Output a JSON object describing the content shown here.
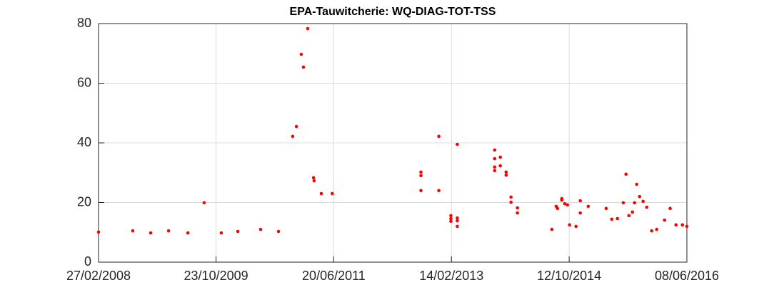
{
  "chart_data": {
    "type": "scatter",
    "title": "EPA-Tauwitcherie: WQ-DIAG-TOT-TSS",
    "x": [
      "27/02/2008",
      "21/08/2008",
      "21/11/2008",
      "21/02/2009",
      "31/05/2009",
      "23/08/2009",
      "19/11/2009",
      "12/02/2010",
      "09/06/2010",
      "09/09/2010",
      "21/11/2010",
      "10/12/2010",
      "04/01/2011",
      "15/01/2011",
      "06/02/2011",
      "08/03/2011",
      "11/03/2011",
      "17/04/2011",
      "12/06/2011",
      "10/09/2012",
      "10/09/2012",
      "10/09/2012",
      "11/12/2012",
      "11/12/2012",
      "11/02/2013",
      "11/02/2013",
      "11/02/2013",
      "16/03/2013",
      "16/03/2013",
      "16/03/2013",
      "16/03/2013",
      "24/09/2013",
      "24/09/2013",
      "24/09/2013",
      "24/09/2013",
      "23/10/2013",
      "23/10/2013",
      "22/11/2013",
      "22/11/2013",
      "17/12/2013",
      "17/12/2013",
      "19/01/2014",
      "19/01/2014",
      "15/07/2014",
      "06/08/2014",
      "13/08/2014",
      "04/09/2014",
      "04/09/2014",
      "19/09/2014",
      "03/10/2014",
      "14/10/2014",
      "16/11/2014",
      "08/12/2014",
      "08/12/2014",
      "18/01/2015",
      "20/04/2015",
      "19/05/2015",
      "17/06/2015",
      "17/07/2015",
      "31/07/2015",
      "15/08/2015",
      "02/09/2015",
      "13/09/2015",
      "24/09/2015",
      "09/10/2015",
      "27/10/2015",
      "15/11/2015",
      "10/12/2015",
      "05/01/2016",
      "14/02/2016",
      "14/03/2016",
      "13/04/2016",
      "16/05/2016",
      "08/06/2016"
    ],
    "values": [
      10.1,
      10.5,
      9.8,
      10.5,
      9.8,
      19.9,
      9.8,
      10.3,
      11.0,
      10.3,
      42.2,
      45.5,
      69.7,
      65.4,
      78.3,
      28.3,
      27.3,
      23.0,
      23.0,
      30.2,
      29.0,
      24.0,
      42.2,
      24.0,
      15.6,
      14.6,
      13.7,
      39.5,
      14.8,
      13.9,
      12.0,
      37.6,
      34.7,
      31.9,
      30.7,
      35.2,
      32.3,
      30.2,
      29.2,
      21.8,
      20.1,
      18.2,
      16.5,
      11.0,
      18.7,
      18.0,
      21.3,
      20.8,
      19.6,
      19.2,
      12.5,
      12.0,
      20.6,
      16.5,
      18.7,
      18.0,
      14.4,
      14.6,
      19.9,
      29.5,
      15.6,
      16.8,
      19.9,
      26.1,
      22.0,
      20.4,
      18.4,
      10.5,
      11.0,
      14.1,
      18.0,
      12.5,
      12.5,
      12.0
    ],
    "color": "#ff0000",
    "xlim": [
      "27/02/2008",
      "08/06/2016"
    ],
    "xticks": [
      "27/02/2008",
      "23/10/2009",
      "20/06/2011",
      "14/02/2013",
      "12/10/2014",
      "08/06/2016"
    ],
    "ylim": [
      0,
      80
    ],
    "yticks": [
      0,
      20,
      40,
      60,
      80
    ],
    "grid": true
  }
}
